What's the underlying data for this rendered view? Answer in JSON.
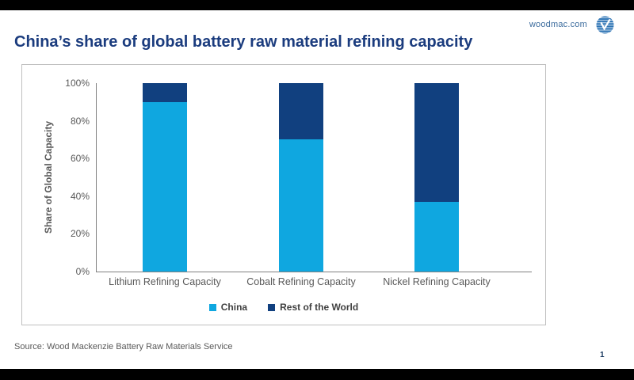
{
  "page": {
    "header": {
      "site_label": "woodmac.com",
      "logo_name": "wood-mackenzie-logo"
    },
    "title": "China’s share of global battery raw material refining capacity",
    "footer": {
      "source": "Source: Wood Mackenzie Battery Raw Materials Service",
      "page_number": "1"
    }
  },
  "colors": {
    "china": "#0FA7E0",
    "rest_of_world": "#11407F",
    "title_navy": "#1B3C7E",
    "axis_text_gray": "#595959",
    "legend_text": "#3F3F3F",
    "brand_blue": "#2E74B5"
  },
  "chart_data": {
    "type": "bar",
    "stacked": true,
    "categories": [
      "Lithium Refining Capacity",
      "Cobalt Refining Capacity",
      "Nickel Refining Capacity"
    ],
    "series": [
      {
        "name": "China",
        "color": "#0FA7E0",
        "values": [
          90,
          70,
          37
        ]
      },
      {
        "name": "Rest of the World",
        "color": "#11407F",
        "values": [
          10,
          30,
          63
        ]
      }
    ],
    "ylabel": "Share of Global Capacity",
    "xlabel": "",
    "ylim": [
      0,
      100
    ],
    "yticks": [
      "0%",
      "20%",
      "40%",
      "60%",
      "80%",
      "100%"
    ],
    "unit": "percent",
    "legend_position": "bottom",
    "grid": false
  }
}
